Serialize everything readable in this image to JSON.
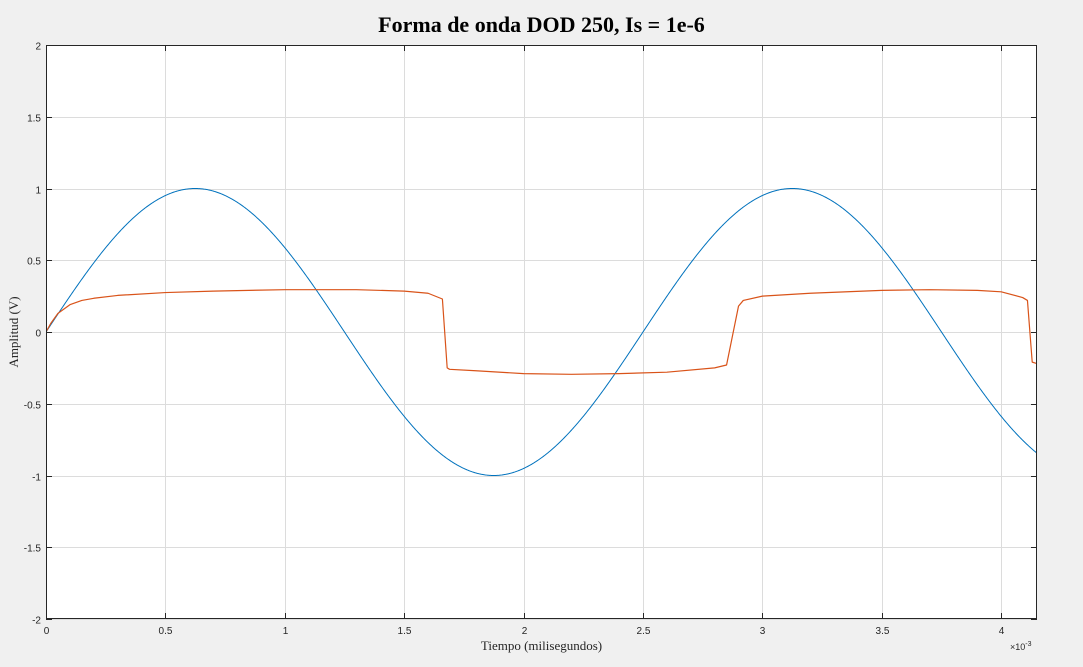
{
  "chart_data": {
    "type": "line",
    "title": "Forma de onda DOD 250, Is = 1e-6",
    "xlabel": "Tiempo (milisegundos)",
    "ylabel": "Amplitud (V)",
    "x_exponent_base": "×10",
    "x_exponent_power": "-3",
    "xlim": [
      0,
      0.00415
    ],
    "ylim": [
      -2,
      2
    ],
    "grid": true,
    "x_ticks": [
      0,
      0.0005,
      0.001,
      0.0015,
      0.002,
      0.0025,
      0.003,
      0.0035,
      0.004
    ],
    "x_tick_labels": [
      "0",
      "0.5",
      "1",
      "1.5",
      "2",
      "2.5",
      "3",
      "3.5",
      "4"
    ],
    "y_ticks": [
      2,
      1.5,
      1,
      0.5,
      0,
      -0.5,
      -1,
      -1.5,
      -2
    ],
    "y_tick_labels": [
      "2",
      "1.5",
      "1",
      "0.5",
      "0",
      "-0.5",
      "-1",
      "-1.5",
      "-2"
    ],
    "series": [
      {
        "color": "#0072bd",
        "description": "sine input, amplitude 1, frequency 400 Hz",
        "x": [
          0,
          0.0001,
          0.0002,
          0.0003,
          0.0004,
          0.0005,
          0.000625,
          0.00075,
          0.0009,
          0.001,
          0.0011,
          0.00125,
          0.0014,
          0.0015,
          0.0016,
          0.00175,
          0.001875,
          0.002,
          0.0021,
          0.0022,
          0.0023,
          0.0025,
          0.0026,
          0.0027,
          0.0028,
          0.0029,
          0.003,
          0.003125,
          0.00325,
          0.0034,
          0.0035,
          0.0036,
          0.00375,
          0.0039,
          0.004,
          0.00415
        ],
        "y": [
          0,
          0.249,
          0.482,
          0.685,
          0.844,
          0.951,
          1.0,
          0.924,
          0.729,
          0.588,
          0.426,
          0.0,
          -0.426,
          -0.588,
          -0.729,
          -0.924,
          -1.0,
          -0.951,
          -0.844,
          -0.685,
          -0.482,
          0.0,
          0.249,
          0.482,
          0.685,
          0.844,
          0.951,
          1.0,
          0.924,
          0.729,
          0.588,
          0.426,
          0.0,
          -0.426,
          -0.588,
          -0.809
        ]
      },
      {
        "color": "#d95319",
        "description": "clipped diode output",
        "x": [
          0,
          2e-05,
          5e-05,
          0.0001,
          0.00015,
          0.0002,
          0.0003,
          0.0005,
          0.0007,
          0.001,
          0.0013,
          0.0015,
          0.0016,
          0.00166,
          0.00168,
          0.00169,
          0.0018,
          0.002,
          0.0022,
          0.0024,
          0.0026,
          0.0028,
          0.00285,
          0.0029,
          0.00292,
          0.003,
          0.0032,
          0.0035,
          0.0037,
          0.0039,
          0.004,
          0.00409,
          0.00411,
          0.00413,
          0.00415
        ],
        "y": [
          0,
          0.06,
          0.13,
          0.19,
          0.22,
          0.235,
          0.255,
          0.275,
          0.285,
          0.295,
          0.295,
          0.285,
          0.27,
          0.23,
          -0.25,
          -0.26,
          -0.27,
          -0.29,
          -0.295,
          -0.29,
          -0.28,
          -0.25,
          -0.23,
          0.18,
          0.22,
          0.25,
          0.27,
          0.29,
          0.295,
          0.29,
          0.28,
          0.24,
          0.22,
          -0.21,
          -0.22
        ]
      }
    ]
  }
}
